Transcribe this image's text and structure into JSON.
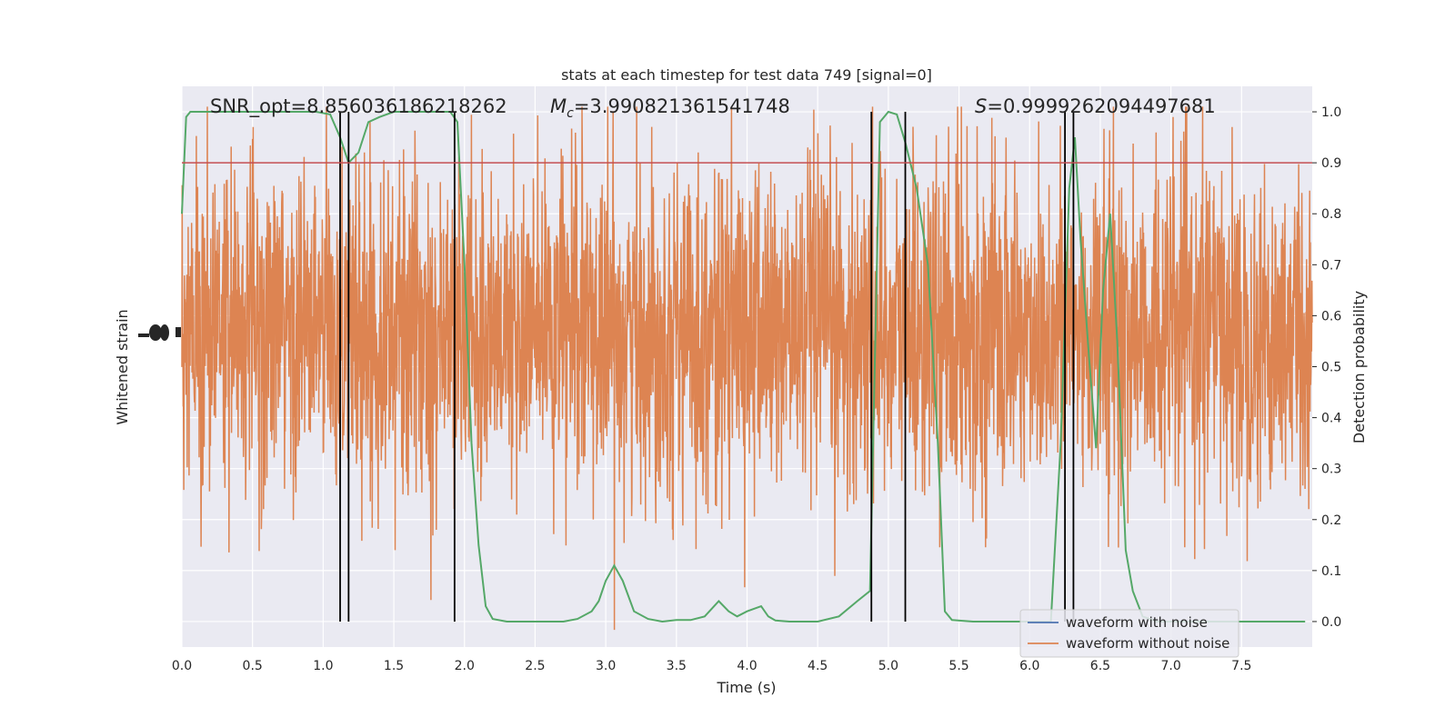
{
  "chart_data": {
    "type": "line",
    "title": "stats at each timestep for test data 749 [signal=0]",
    "xlabel": "Time (s)",
    "ylabel_left": "Whitened strain",
    "ylabel_right": "Detection probability",
    "xlim": [
      0,
      8
    ],
    "ylim_right": [
      -0.05,
      1.05
    ],
    "x_ticks": [
      "0.0",
      "0.5",
      "1.0",
      "1.5",
      "2.0",
      "2.5",
      "3.0",
      "3.5",
      "4.0",
      "4.5",
      "5.0",
      "5.5",
      "6.0",
      "6.5",
      "7.0",
      "7.5"
    ],
    "right_ticks": [
      "0.0",
      "0.1",
      "0.2",
      "0.3",
      "0.4",
      "0.5",
      "0.6",
      "0.7",
      "0.8",
      "0.9",
      "1.0"
    ],
    "annotations": {
      "snr": "SNR_opt=8.856036186218262",
      "mc_symbol": "M",
      "mc_sub": "c",
      "mc_value": "=3.990821361541748",
      "s_symbol": "S",
      "s_value": "=0.9999262094497681"
    },
    "threshold": 0.9,
    "vertical_lines": [
      1.12,
      1.18,
      1.93,
      4.88,
      5.12,
      6.25,
      6.31
    ],
    "legend": {
      "position": "lower-right",
      "entries": [
        {
          "label": "waveform with noise",
          "color": "#4c72b0"
        },
        {
          "label": "waveform without noise",
          "color": "#dd8452"
        }
      ]
    },
    "probability_series": {
      "name": "",
      "color": "#55a868",
      "x": [
        0.0,
        0.03,
        0.06,
        0.1,
        0.2,
        0.4,
        0.6,
        0.8,
        0.95,
        1.05,
        1.12,
        1.18,
        1.25,
        1.32,
        1.4,
        1.5,
        1.6,
        1.8,
        1.9,
        1.95,
        2.0,
        2.05,
        2.1,
        2.15,
        2.2,
        2.3,
        2.5,
        2.7,
        2.8,
        2.9,
        2.95,
        3.0,
        3.06,
        3.12,
        3.2,
        3.3,
        3.4,
        3.5,
        3.6,
        3.7,
        3.8,
        3.87,
        3.93,
        4.0,
        4.1,
        4.15,
        4.2,
        4.3,
        4.5,
        4.65,
        4.78,
        4.87,
        4.94,
        5.0,
        5.06,
        5.12,
        5.2,
        5.28,
        5.35,
        5.4,
        5.45,
        5.6,
        5.8,
        6.0,
        6.15,
        6.22,
        6.28,
        6.32,
        6.36,
        6.42,
        6.47,
        6.52,
        6.57,
        6.62,
        6.68,
        6.73,
        6.8,
        6.9,
        7.0,
        7.2,
        7.5,
        7.75,
        7.95
      ],
      "y": [
        0.8,
        0.99,
        1.0,
        1.0,
        1.0,
        1.0,
        1.0,
        1.0,
        1.0,
        0.995,
        0.95,
        0.9,
        0.92,
        0.98,
        0.99,
        1.0,
        1.0,
        1.0,
        1.0,
        0.98,
        0.7,
        0.35,
        0.15,
        0.03,
        0.005,
        0.0,
        0.0,
        0.0,
        0.005,
        0.02,
        0.04,
        0.08,
        0.11,
        0.08,
        0.02,
        0.005,
        0.0,
        0.003,
        0.003,
        0.01,
        0.04,
        0.02,
        0.01,
        0.02,
        0.03,
        0.01,
        0.002,
        0.0,
        0.0,
        0.01,
        0.04,
        0.06,
        0.98,
        1.0,
        0.995,
        0.94,
        0.85,
        0.7,
        0.35,
        0.02,
        0.003,
        0.0,
        0.0,
        0.0,
        0.0,
        0.35,
        0.85,
        0.95,
        0.75,
        0.52,
        0.34,
        0.65,
        0.8,
        0.55,
        0.14,
        0.06,
        0.01,
        0.0,
        0.0,
        0.0,
        0.0,
        0.0,
        0.0
      ]
    },
    "strain_series": {
      "name": "",
      "color": "#dd8452",
      "note_values_in_prob_axis_units": true
    }
  }
}
